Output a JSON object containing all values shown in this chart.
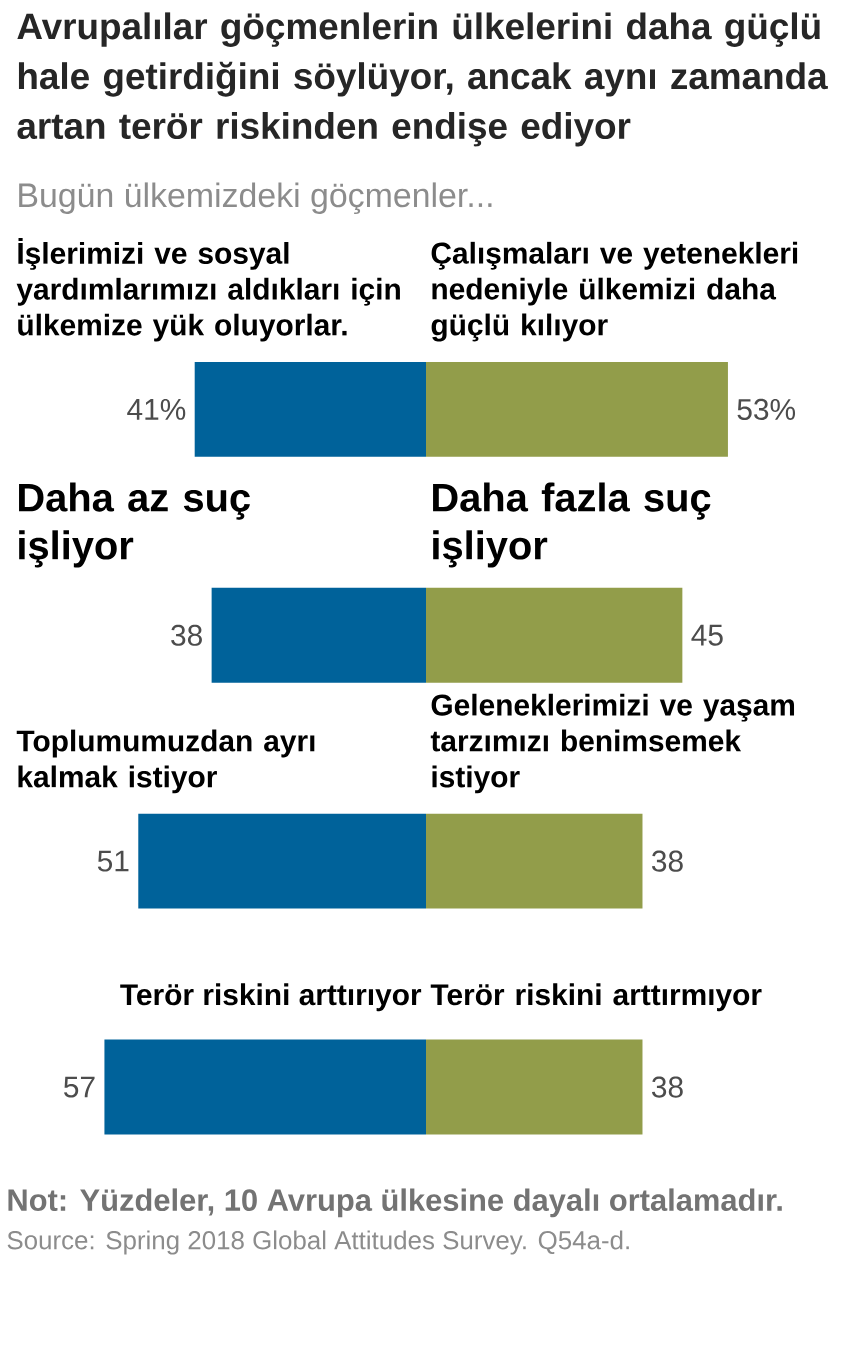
{
  "chart_data": [
    {
      "type": "bar",
      "orientation": "horizontal",
      "title": "Avrupalılar göçmenlerin ülkelerini daha güçlü hale getirdiğini söylüyor, ancak aynı zamanda artan terör riskinden endişe ediyor",
      "subtitle": "Bugün ülkemizdeki göçmenler...",
      "categories": [
        "İşlerimizi ve sosyal yardımlarımızı aldıkları için ülkemize yük oluyorlar.",
        "Daha az suç işliyor",
        "Toplumumuzdan ayrı kalmak istiyor",
        "Terör riskini arttırıyor"
      ],
      "values": [
        41,
        38,
        51,
        57
      ],
      "color": "#00629a",
      "value_labels": [
        "41%",
        "38",
        "51",
        "57"
      ],
      "annotations": [
        "Not: Yüzdeler, 10 Avrupa ülkesine dayalı ortalamadır.",
        "Source: Spring 2018 Global Attitudes Survey. Q54a-d."
      ]
    },
    {
      "type": "bar",
      "orientation": "horizontal",
      "categories": [
        "Çalışmaları ve yetenekleri nedeniyle ülkemizi daha güçlü kılıyor",
        "Daha fazla suç işliyor",
        "Geleneklerimizi ve yaşam tarzımızı benimsemek istiyor",
        "Terör riskini arttırmıyor"
      ],
      "values": [
        53,
        45,
        38,
        38
      ],
      "color": "#929d4a",
      "value_labels": [
        "53%",
        "45",
        "38",
        "38"
      ]
    }
  ]
}
